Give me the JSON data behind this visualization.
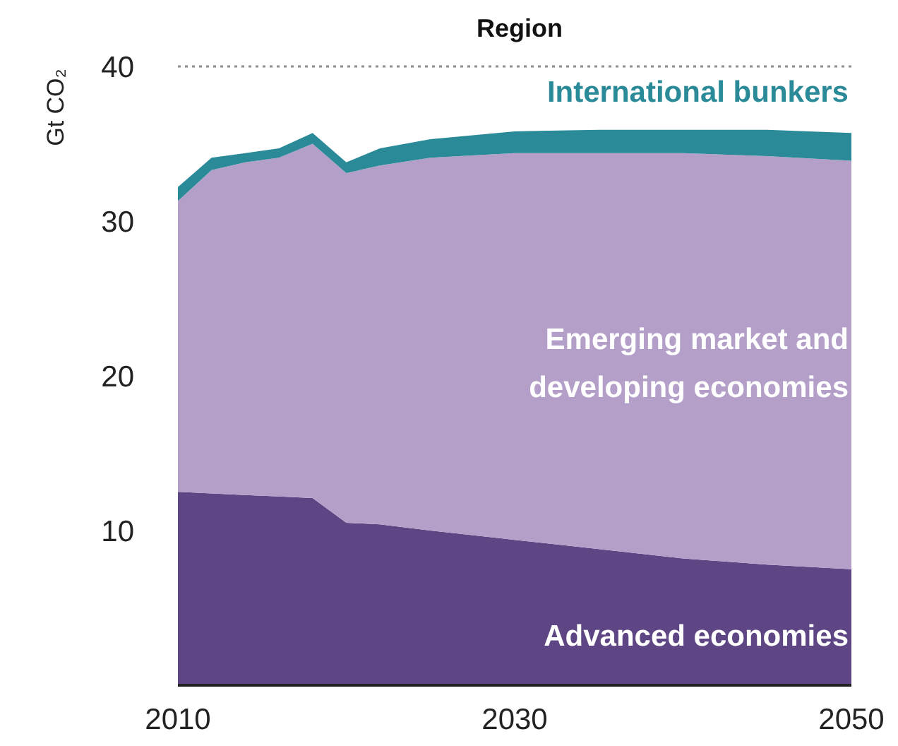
{
  "chart_data": {
    "type": "area",
    "title": "Region",
    "ylabel": "Gt CO₂",
    "stacked": true,
    "x": [
      2010,
      2012,
      2014,
      2016,
      2018,
      2020,
      2022,
      2025,
      2030,
      2035,
      2040,
      2045,
      2050
    ],
    "series": [
      {
        "name": "Advanced economies",
        "color": "#5d4683",
        "values": [
          12.5,
          12.4,
          12.3,
          12.2,
          12.1,
          10.5,
          10.4,
          10.0,
          9.4,
          8.8,
          8.2,
          7.8,
          7.5
        ]
      },
      {
        "name": "Emerging market and developing economies",
        "color": "#b49fc9",
        "values": [
          18.8,
          20.9,
          21.5,
          21.9,
          22.9,
          22.6,
          23.2,
          24.1,
          25.0,
          25.6,
          26.2,
          26.4,
          26.4
        ]
      },
      {
        "name": "International bunkers",
        "color": "#2a8a98",
        "values": [
          0.9,
          0.8,
          0.6,
          0.6,
          0.7,
          0.7,
          1.1,
          1.2,
          1.4,
          1.5,
          1.5,
          1.7,
          1.8
        ]
      }
    ],
    "xlim": [
      2010,
      2050
    ],
    "xticks": [
      2010,
      2030,
      2050
    ],
    "ylim": [
      0,
      40
    ],
    "yticks": [
      10,
      20,
      30,
      40
    ],
    "ref_lines": [
      {
        "axis": "y",
        "value": 40,
        "line_style": "dotted",
        "color": "#8c8c8c"
      }
    ]
  }
}
